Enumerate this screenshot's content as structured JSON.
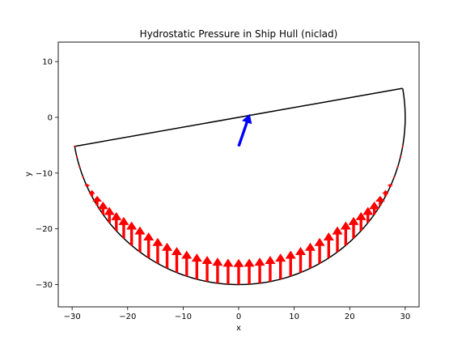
{
  "chart_data": {
    "type": "line",
    "title": "Hydrostatic Pressure in Ship Hull (niclad)",
    "xlabel": "x",
    "ylabel": "y",
    "xlim": [
      -32.5,
      32.5
    ],
    "ylim": [
      -34,
      13.5
    ],
    "xticks": [
      -30,
      -20,
      -10,
      0,
      10,
      20,
      30
    ],
    "yticks": [
      -30,
      -20,
      -10,
      0,
      10
    ],
    "xtick_labels": [
      "−30",
      "−20",
      "−10",
      "0",
      "10",
      "20",
      "30"
    ],
    "ytick_labels": [
      "−30",
      "−20",
      "−10",
      "0",
      "10"
    ],
    "grid": false,
    "hull": {
      "center": [
        0,
        0
      ],
      "radius": 30,
      "heel_deg": 10,
      "color": "#000000"
    },
    "deck_line": {
      "from": [
        -29.5,
        -5.2
      ],
      "to": [
        29.5,
        5.2
      ],
      "color": "#000000"
    },
    "pressure_arrows": {
      "color": "#ff0000",
      "start_angle_deg": -170,
      "end_angle_deg": -10,
      "count": 45,
      "waterline_y": -11,
      "scale": 0.36,
      "max_length": 4.6
    },
    "resultant_arrow": {
      "from": [
        0,
        -5.2
      ],
      "to": [
        2.0,
        0.6
      ],
      "color": "#0000ff"
    }
  }
}
